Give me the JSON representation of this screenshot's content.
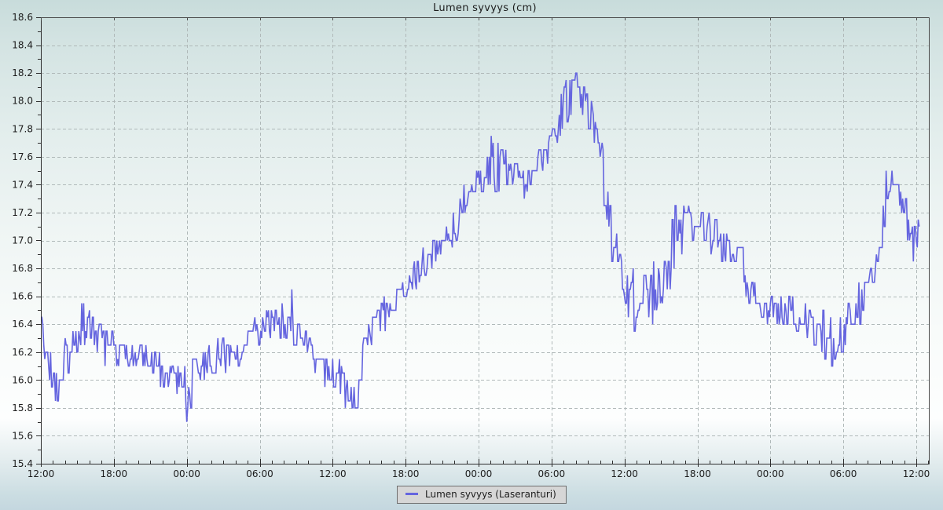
{
  "page": {
    "title": "Lumen syvyys (cm)"
  },
  "colors": {
    "series_line": "#6565df",
    "grid": "#b0b9b9",
    "axis_frame": "#4a4a4a",
    "text": "#1c1c1c",
    "legend_bg": "#d6d6d6",
    "legend_border": "#6f6f6f"
  },
  "chart_data": {
    "type": "line",
    "title": "Lumen syvyys (cm)",
    "xlabel": "",
    "ylabel": "",
    "grid": true,
    "x_axis": {
      "kind": "time",
      "span_hours": 72,
      "major_tick_hours": 6,
      "minor_tick_hours": 1,
      "labels": [
        "12:00",
        "18:00",
        "00:00",
        "06:00",
        "12:00",
        "18:00",
        "00:00",
        "06:00",
        "12:00",
        "18:00",
        "00:00",
        "06:00",
        "12:00"
      ]
    },
    "y_axis": {
      "min": 15.4,
      "max": 18.6,
      "tick_step": 0.2,
      "minor_step": 0.1,
      "labels": [
        "15.4",
        "15.6",
        "15.8",
        "16.0",
        "16.2",
        "16.4",
        "16.6",
        "16.8",
        "17.0",
        "17.2",
        "17.4",
        "17.6",
        "17.8",
        "18.0",
        "18.2",
        "18.4",
        "18.6"
      ]
    },
    "legend": {
      "position": "bottom-center",
      "entries": [
        {
          "label": "Lumen syvyys (Laseranturi)",
          "color": "#6565df"
        }
      ]
    },
    "series": [
      {
        "name": "Lumen syvyys (Laseranturi)",
        "color": "#6565df",
        "style": "noisy-step",
        "quantum_cm": 0.05,
        "sample_step_hours": 0.08,
        "end_hour": 72.3,
        "noise_seed": 20130218,
        "hold_probability": 0.28,
        "envelope_t_mean_amp": [
          [
            0,
            16.45,
            0.1
          ],
          [
            0.7,
            16.05,
            0.18
          ],
          [
            1.2,
            15.95,
            0.15
          ],
          [
            2,
            16.15,
            0.15
          ],
          [
            3,
            16.38,
            0.18
          ],
          [
            4.2,
            16.38,
            0.16
          ],
          [
            5,
            16.25,
            0.14
          ],
          [
            6,
            16.2,
            0.14
          ],
          [
            8,
            16.18,
            0.13
          ],
          [
            9,
            16.08,
            0.14
          ],
          [
            11,
            16.05,
            0.14
          ],
          [
            12,
            15.98,
            0.28
          ],
          [
            13,
            16.1,
            0.12
          ],
          [
            14.5,
            16.15,
            0.13
          ],
          [
            16,
            16.2,
            0.15
          ],
          [
            17,
            16.28,
            0.14
          ],
          [
            18,
            16.35,
            0.12
          ],
          [
            19.5,
            16.42,
            0.13
          ],
          [
            20.8,
            16.45,
            0.24
          ],
          [
            22,
            16.3,
            0.15
          ],
          [
            23,
            16.05,
            0.15
          ],
          [
            24.5,
            16.0,
            0.16
          ],
          [
            25.8,
            15.95,
            0.18
          ],
          [
            26.4,
            16.15,
            0.15
          ],
          [
            27,
            16.35,
            0.12
          ],
          [
            28,
            16.45,
            0.13
          ],
          [
            30,
            16.65,
            0.13
          ],
          [
            32,
            16.88,
            0.12
          ],
          [
            33,
            16.95,
            0.12
          ],
          [
            34,
            17.1,
            0.14
          ],
          [
            35.3,
            17.38,
            0.13
          ],
          [
            36,
            17.48,
            0.12
          ],
          [
            37,
            17.55,
            0.25
          ],
          [
            39,
            17.5,
            0.13
          ],
          [
            40,
            17.35,
            0.15
          ],
          [
            41,
            17.55,
            0.14
          ],
          [
            42,
            17.72,
            0.15
          ],
          [
            43,
            17.95,
            0.16
          ],
          [
            43.9,
            18.08,
            0.2
          ],
          [
            44.6,
            18.0,
            0.13
          ],
          [
            45.4,
            17.88,
            0.13
          ],
          [
            46.2,
            17.5,
            0.2
          ],
          [
            47,
            17.0,
            0.2
          ],
          [
            48,
            16.7,
            0.2
          ],
          [
            49,
            16.52,
            0.25
          ],
          [
            50.2,
            16.6,
            0.22
          ],
          [
            51.2,
            16.75,
            0.22
          ],
          [
            51.8,
            17.1,
            0.42
          ],
          [
            52.4,
            17.05,
            0.2
          ],
          [
            53.5,
            17.13,
            0.15
          ],
          [
            55,
            17.08,
            0.15
          ],
          [
            56,
            17.0,
            0.16
          ],
          [
            57,
            16.85,
            0.15
          ],
          [
            58,
            16.7,
            0.15
          ],
          [
            59,
            16.55,
            0.13
          ],
          [
            61,
            16.5,
            0.13
          ],
          [
            62.5,
            16.47,
            0.15
          ],
          [
            64,
            16.35,
            0.16
          ],
          [
            65,
            16.28,
            0.2
          ],
          [
            66,
            16.35,
            0.18
          ],
          [
            67,
            16.5,
            0.16
          ],
          [
            68,
            16.62,
            0.14
          ],
          [
            68.7,
            16.8,
            0.13
          ],
          [
            69.2,
            17.05,
            0.15
          ],
          [
            69.6,
            17.42,
            0.2
          ],
          [
            70.1,
            17.45,
            0.15
          ],
          [
            70.8,
            17.3,
            0.14
          ],
          [
            71.4,
            17.05,
            0.16
          ],
          [
            71.9,
            16.98,
            0.15
          ],
          [
            72.3,
            17.1,
            0.08
          ]
        ]
      }
    ]
  }
}
